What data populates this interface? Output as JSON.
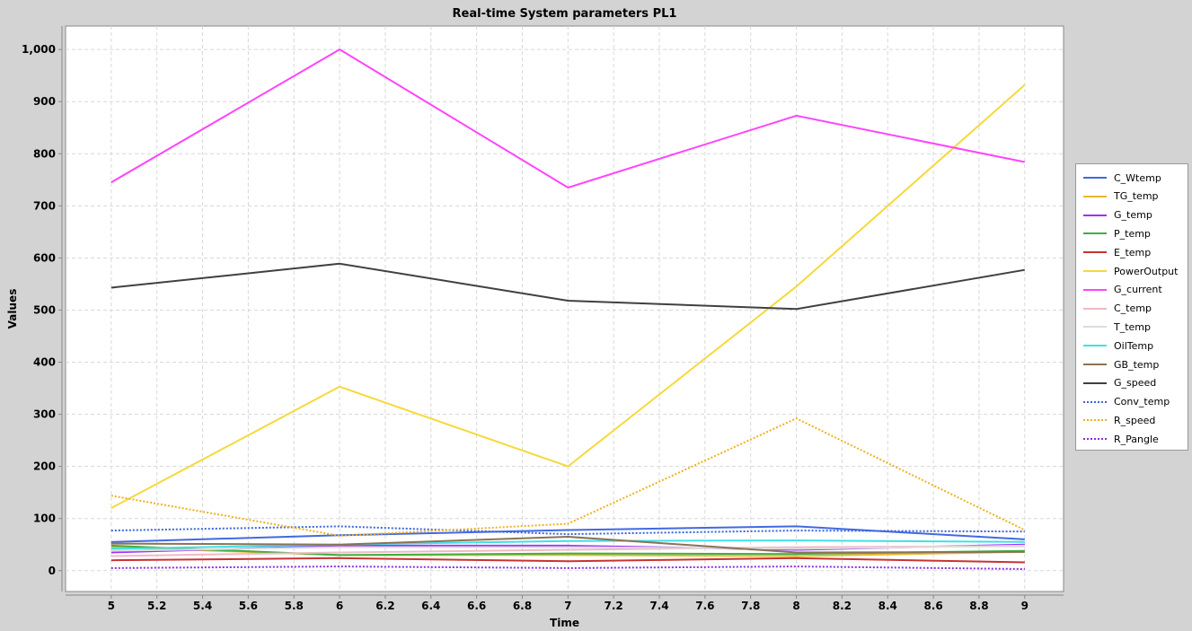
{
  "chart_data": {
    "type": "line",
    "title": "Real-time System parameters PL1",
    "xlabel": "Time",
    "ylabel": "Values",
    "xlim": [
      4.8,
      9.17
    ],
    "ylim": [
      -40,
      1045
    ],
    "x_ticks": [
      5,
      5.2,
      5.4,
      5.6,
      5.8,
      6,
      6.2,
      6.4,
      6.6,
      6.8,
      7,
      7.2,
      7.4,
      7.6,
      7.8,
      8,
      8.2,
      8.4,
      8.6,
      8.8,
      9
    ],
    "y_ticks": [
      0,
      100,
      200,
      300,
      400,
      500,
      600,
      700,
      800,
      900,
      1000
    ],
    "y_tick_labels": [
      "0",
      "100",
      "200",
      "300",
      "400",
      "500",
      "600",
      "700",
      "800",
      "900",
      "1,000"
    ],
    "grid": true,
    "legend_position": "right",
    "x": [
      5,
      6,
      7,
      8,
      9
    ],
    "series": [
      {
        "name": "C_Wtemp",
        "color": "#4169e1",
        "style": "solid",
        "values": [
          55,
          68,
          78,
          85,
          60
        ]
      },
      {
        "name": "TG_temp",
        "color": "#e8b830",
        "style": "solid",
        "values": [
          45,
          30,
          30,
          28,
          36
        ]
      },
      {
        "name": "G_temp",
        "color": "#9b30ff",
        "style": "solid",
        "values": [
          35,
          48,
          48,
          40,
          50
        ]
      },
      {
        "name": "P_temp",
        "color": "#3cb043",
        "style": "solid",
        "values": [
          48,
          30,
          33,
          32,
          38
        ]
      },
      {
        "name": "E_temp",
        "color": "#c83232",
        "style": "solid",
        "values": [
          20,
          24,
          18,
          24,
          16
        ]
      },
      {
        "name": "PowerOutput",
        "color": "#f5d93c",
        "style": "solid",
        "values": [
          120,
          353,
          200,
          545,
          932
        ]
      },
      {
        "name": "G_current",
        "color": "#ff44ff",
        "style": "solid",
        "values": [
          745,
          1000,
          735,
          873,
          784
        ]
      },
      {
        "name": "C_temp",
        "color": "#f0b8c8",
        "style": "solid",
        "values": [
          28,
          35,
          40,
          45,
          47
        ]
      },
      {
        "name": "T_temp",
        "color": "#dcdcdc",
        "style": "solid",
        "values": [
          38,
          45,
          45,
          42,
          48
        ]
      },
      {
        "name": "OilTemp",
        "color": "#40e0e8",
        "style": "solid",
        "values": [
          42,
          50,
          57,
          58,
          55
        ]
      },
      {
        "name": "GB_temp",
        "color": "#8b7355",
        "style": "solid",
        "values": [
          52,
          50,
          65,
          35,
          36
        ]
      },
      {
        "name": "G_speed",
        "color": "#404040",
        "style": "solid",
        "values": [
          543,
          589,
          518,
          502,
          577
        ]
      },
      {
        "name": "Conv_temp",
        "color": "#3a63d8",
        "style": "dotted",
        "values": [
          77,
          85,
          70,
          77,
          75
        ]
      },
      {
        "name": "R_speed",
        "color": "#f0b020",
        "style": "dotted",
        "values": [
          144,
          67,
          90,
          292,
          78
        ]
      },
      {
        "name": "R_Pangle",
        "color": "#8a2be2",
        "style": "dotted",
        "values": [
          5,
          8,
          5,
          8,
          3
        ]
      }
    ]
  }
}
